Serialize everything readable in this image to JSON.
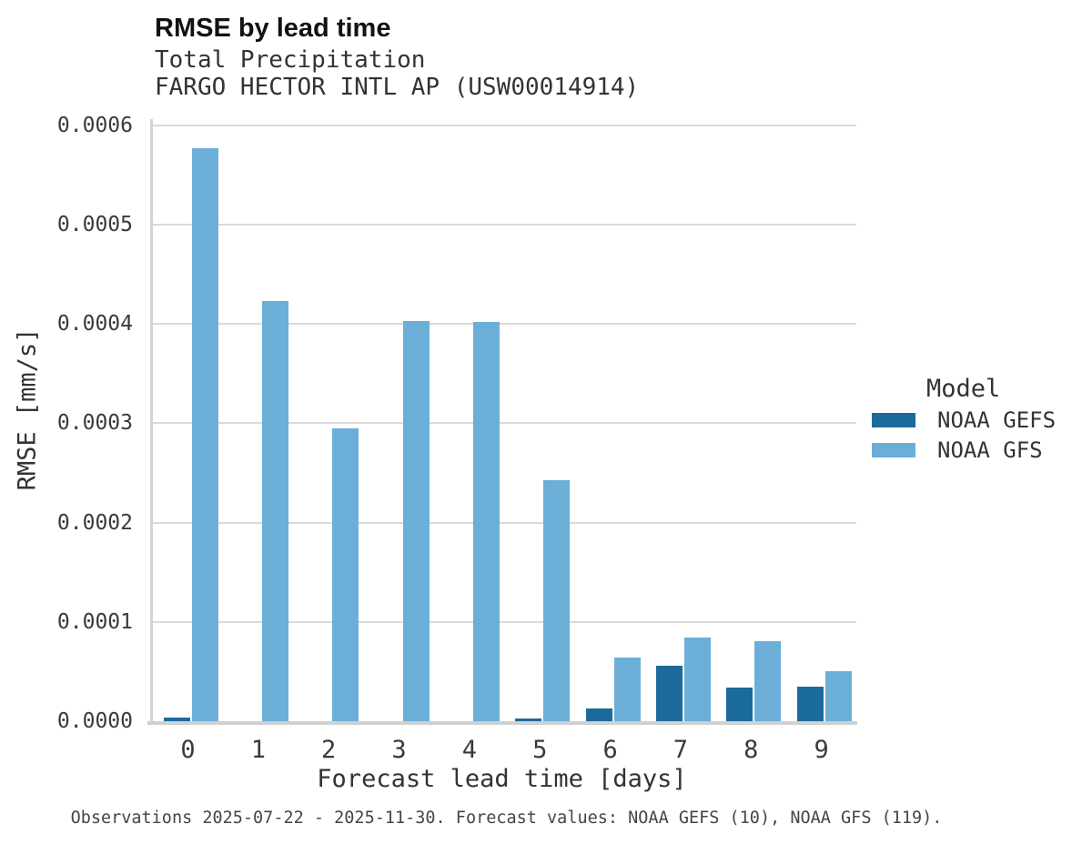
{
  "header": {
    "title": "RMSE by lead time",
    "subtitle1": "Total Precipitation",
    "subtitle2": "FARGO HECTOR INTL AP (USW00014914)"
  },
  "chart_data": {
    "type": "bar",
    "title": "RMSE by lead time",
    "subtitle": [
      "Total Precipitation",
      "FARGO HECTOR INTL AP (USW00014914)"
    ],
    "xlabel": "Forecast lead time [days]",
    "ylabel": "RMSE [mm/s]",
    "categories": [
      "0",
      "1",
      "2",
      "3",
      "4",
      "5",
      "6",
      "7",
      "8",
      "9"
    ],
    "series": [
      {
        "name": "NOAA GEFS",
        "color": "#1A6B9C",
        "values": [
          4e-06,
          0,
          0,
          0,
          0,
          3e-06,
          1.3e-05,
          5.6e-05,
          3.4e-05,
          3.5e-05
        ]
      },
      {
        "name": "NOAA GFS",
        "color": "#6BAFD9",
        "values": [
          0.000577,
          0.000423,
          0.000295,
          0.000403,
          0.000402,
          0.000243,
          6.4e-05,
          8.4e-05,
          8.1e-05,
          5e-05
        ]
      }
    ],
    "ylim": [
      0,
      0.0006
    ],
    "y_ticks": [
      "0.0000",
      "0.0001",
      "0.0002",
      "0.0003",
      "0.0004",
      "0.0005",
      "0.0006"
    ],
    "grid": true,
    "legend_position": "right"
  },
  "legend": {
    "title": "Model",
    "items": [
      {
        "label": "NOAA GEFS",
        "color": "#1A6B9C"
      },
      {
        "label": "NOAA GFS",
        "color": "#6BAFD9"
      }
    ]
  },
  "footer": {
    "note": "Observations 2025-07-22 - 2025-11-30. Forecast values: NOAA GEFS (10), NOAA GFS (119)."
  }
}
